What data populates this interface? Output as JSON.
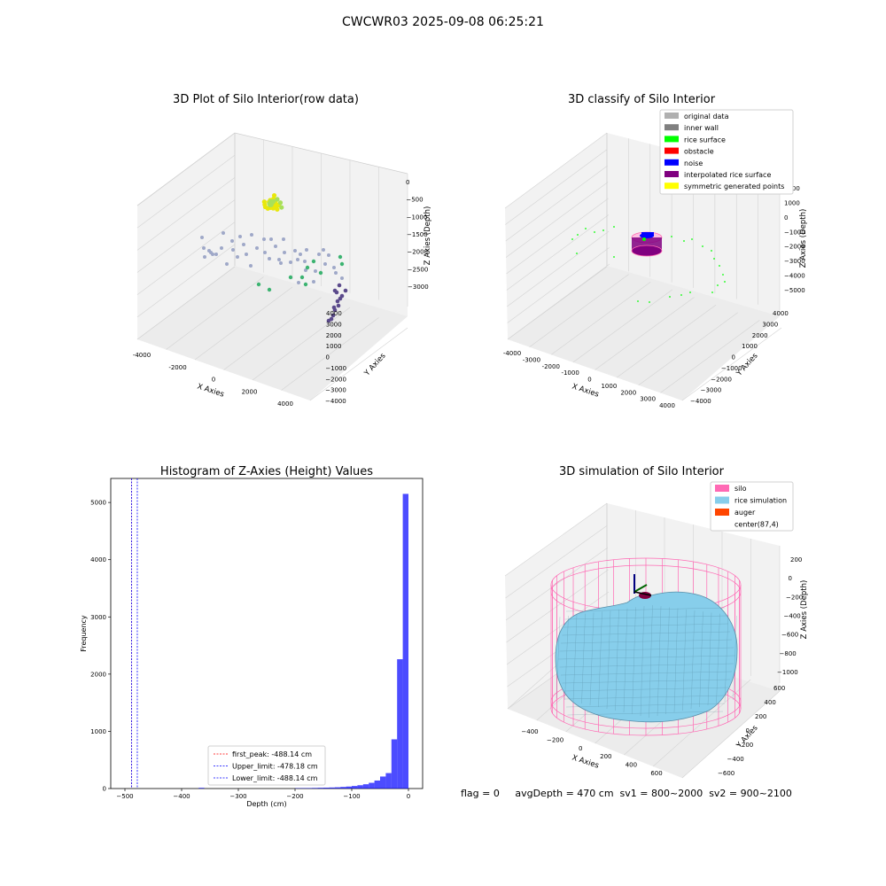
{
  "suptitle": "CWCWR03 2025-09-08 06:25:21",
  "footer": {
    "text": "flag = 0     avgDepth = 470 cm  sv1 = 800~2000  sv2 = 900~2100"
  },
  "colors": {
    "pane": "#f2f2f2",
    "grid": "#d3d3d3",
    "hist_bar": "#0000ff",
    "silo": "#ff69b4",
    "rice_simulation": "#87ceeb",
    "auger": "#ff4500",
    "original_data": "#b0b0b0",
    "inner_wall": "#808080",
    "rice_surface": "#00ff00",
    "obstacle": "#ff0000",
    "noise": "#0000ff",
    "interpolated": "#800080",
    "symmetric": "#ffff00"
  },
  "chart_data": [
    {
      "type": "scatter",
      "title": "3D Plot of Silo Interior(row data)",
      "xlabel": "X Axies",
      "ylabel": "Y Axies",
      "zlabel": "Z Axies (Depth)",
      "x_ticks": [
        "-4000",
        "-2000",
        "0",
        "2000",
        "4000"
      ],
      "y_ticks": [
        "4000",
        "3000",
        "2000",
        "1000",
        "0",
        "−1000",
        "−2000",
        "−3000",
        "−4000"
      ],
      "z_ticks": [
        "0",
        "−500",
        "−1000",
        "−1500",
        "−2000",
        "−2500",
        "−3000"
      ],
      "xlim": [
        -4500,
        4500
      ],
      "ylim": [
        -4000,
        4000
      ],
      "zlim": [
        -3300,
        0
      ]
    },
    {
      "type": "scatter",
      "title": "3D classify of Silo Interior",
      "xlabel": "X Axies",
      "ylabel": "Y Axies",
      "zlabel": "Z Axies (Depth)",
      "x_ticks": [
        "-4000",
        "-3000",
        "-2000",
        "-1000",
        "0",
        "1000",
        "2000",
        "3000",
        "4000"
      ],
      "y_ticks": [
        "4000",
        "3000",
        "2000",
        "1000",
        "0",
        "−1000",
        "−2000",
        "−3000",
        "−4000"
      ],
      "z_ticks": [
        "2000",
        "1000",
        "0",
        "−1000",
        "−2000",
        "−3000",
        "−4000",
        "−5000"
      ],
      "legend": [
        "original data",
        "inner wall",
        "rice surface",
        "obstacle",
        "noise",
        "interpolated rice surface",
        "symmetric generated points"
      ],
      "legend_position": "top-right"
    },
    {
      "type": "bar",
      "title": "Histogram of Z-Axies (Height) Values",
      "xlabel": "Depth (cm)",
      "ylabel": "Frequency",
      "x_ticks": [
        "−500",
        "−400",
        "−300",
        "−200",
        "−100",
        "0"
      ],
      "y_ticks": [
        "0",
        "1000",
        "2000",
        "3000",
        "4000",
        "5000"
      ],
      "xlim": [
        -525,
        25
      ],
      "ylim": [
        0,
        5420
      ],
      "bins": [
        {
          "x0": -370,
          "x1": -360,
          "y": 12
        },
        {
          "x0": -200,
          "x1": -190,
          "y": 6
        },
        {
          "x0": -190,
          "x1": -180,
          "y": 7
        },
        {
          "x0": -180,
          "x1": -170,
          "y": 8
        },
        {
          "x0": -170,
          "x1": -160,
          "y": 10
        },
        {
          "x0": -160,
          "x1": -150,
          "y": 13
        },
        {
          "x0": -150,
          "x1": -140,
          "y": 15
        },
        {
          "x0": -140,
          "x1": -130,
          "y": 18
        },
        {
          "x0": -130,
          "x1": -120,
          "y": 22
        },
        {
          "x0": -120,
          "x1": -110,
          "y": 28
        },
        {
          "x0": -110,
          "x1": -100,
          "y": 35
        },
        {
          "x0": -100,
          "x1": -90,
          "y": 45
        },
        {
          "x0": -90,
          "x1": -80,
          "y": 58
        },
        {
          "x0": -80,
          "x1": -70,
          "y": 75
        },
        {
          "x0": -70,
          "x1": -60,
          "y": 100
        },
        {
          "x0": -60,
          "x1": -50,
          "y": 140
        },
        {
          "x0": -50,
          "x1": -40,
          "y": 210
        },
        {
          "x0": -40,
          "x1": -30,
          "y": 270
        },
        {
          "x0": -30,
          "x1": -20,
          "y": 860
        },
        {
          "x0": -20,
          "x1": -10,
          "y": 2260
        },
        {
          "x0": -10,
          "x1": 0,
          "y": 5150
        }
      ],
      "vlines": [
        {
          "label": "first_peak: -488.14 cm",
          "x": -488.14,
          "color": "#ff0000"
        },
        {
          "label": "Upper_limit: -478.18 cm",
          "x": -478.18,
          "color": "#0000ff"
        },
        {
          "label": "Lower_limit: -488.14 cm",
          "x": -488.14,
          "color": "#0000ff"
        }
      ],
      "legend_position": "lower-center"
    },
    {
      "type": "surface",
      "title": "3D simulation of Silo Interior",
      "xlabel": "X Axies",
      "ylabel": "Y Axies",
      "zlabel": "Z Axies (Depth)",
      "x_ticks": [
        "−400",
        "−200",
        "0",
        "200",
        "400",
        "600"
      ],
      "y_ticks": [
        "600",
        "400",
        "200",
        "0",
        "−200",
        "−400",
        "−600"
      ],
      "z_ticks": [
        "200",
        "0",
        "−200",
        "−400",
        "−600",
        "−800",
        "−1000"
      ],
      "legend": [
        "silo",
        "rice simulation",
        "auger",
        "center(87,4)"
      ],
      "legend_position": "top-right"
    }
  ]
}
